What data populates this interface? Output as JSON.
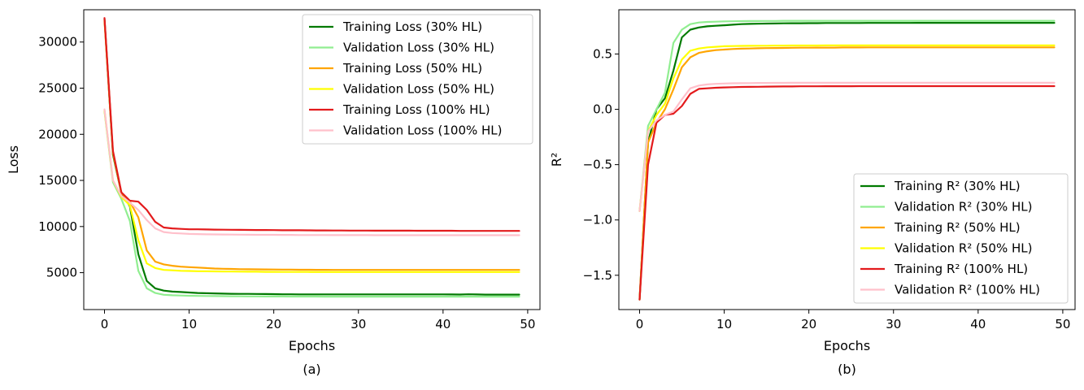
{
  "chart_data": [
    {
      "type": "line",
      "caption": "(a)",
      "xlabel": "Epochs",
      "ylabel": "Loss",
      "xlim": [
        -2.45,
        51.45
      ],
      "ylim": [
        1000,
        33500
      ],
      "xticks": [
        0,
        10,
        20,
        30,
        40,
        50
      ],
      "yticks": [
        5000,
        10000,
        15000,
        20000,
        25000,
        30000
      ],
      "x_tick_labels": [
        "0",
        "10",
        "20",
        "30",
        "40",
        "50"
      ],
      "y_tick_labels": [
        "5000",
        "10000",
        "15000",
        "20000",
        "25000",
        "30000"
      ],
      "grid": false,
      "legend_position": "top-right",
      "x": [
        0,
        1,
        2,
        3,
        4,
        5,
        6,
        7,
        8,
        9,
        10,
        11,
        12,
        13,
        14,
        15,
        16,
        17,
        18,
        19,
        20,
        21,
        22,
        23,
        24,
        25,
        26,
        27,
        28,
        29,
        30,
        31,
        32,
        33,
        34,
        35,
        36,
        37,
        38,
        39,
        40,
        41,
        42,
        43,
        44,
        45,
        46,
        47,
        48,
        49
      ],
      "series": [
        {
          "name": "Training Loss (30% HL)",
          "color": "#007a00",
          "values": [
            32500,
            17800,
            13600,
            12200,
            7000,
            4100,
            3300,
            3050,
            2950,
            2900,
            2850,
            2800,
            2770,
            2750,
            2730,
            2710,
            2700,
            2700,
            2690,
            2680,
            2670,
            2660,
            2660,
            2650,
            2650,
            2650,
            2650,
            2650,
            2650,
            2650,
            2650,
            2650,
            2650,
            2650,
            2650,
            2650,
            2650,
            2650,
            2650,
            2650,
            2650,
            2640,
            2630,
            2660,
            2640,
            2620,
            2620,
            2620,
            2620,
            2620
          ]
        },
        {
          "name": "Validation Loss (30% HL)",
          "color": "#90ee90",
          "values": [
            22500,
            14800,
            13000,
            10600,
            5200,
            3300,
            2800,
            2600,
            2550,
            2520,
            2500,
            2480,
            2470,
            2460,
            2450,
            2440,
            2440,
            2430,
            2430,
            2420,
            2420,
            2420,
            2410,
            2410,
            2410,
            2410,
            2400,
            2400,
            2400,
            2400,
            2400,
            2400,
            2400,
            2400,
            2400,
            2400,
            2400,
            2400,
            2400,
            2400,
            2400,
            2400,
            2400,
            2400,
            2400,
            2400,
            2400,
            2400,
            2400,
            2400
          ]
        },
        {
          "name": "Training Loss (50% HL)",
          "color": "#ffa500",
          "values": [
            32300,
            18000,
            13600,
            12700,
            11000,
            7400,
            6200,
            5900,
            5750,
            5650,
            5600,
            5550,
            5500,
            5450,
            5420,
            5400,
            5380,
            5370,
            5360,
            5350,
            5340,
            5330,
            5330,
            5320,
            5320,
            5310,
            5310,
            5300,
            5300,
            5300,
            5300,
            5300,
            5300,
            5300,
            5300,
            5300,
            5300,
            5300,
            5300,
            5300,
            5300,
            5300,
            5300,
            5300,
            5300,
            5300,
            5300,
            5300,
            5300,
            5300
          ]
        },
        {
          "name": "Validation Loss (50% HL)",
          "color": "#ffff00",
          "values": [
            22600,
            15000,
            13200,
            12300,
            8500,
            6000,
            5500,
            5300,
            5250,
            5200,
            5180,
            5160,
            5150,
            5140,
            5130,
            5120,
            5110,
            5100,
            5100,
            5090,
            5090,
            5080,
            5080,
            5080,
            5080,
            5070,
            5070,
            5070,
            5070,
            5070,
            5070,
            5070,
            5070,
            5070,
            5070,
            5070,
            5070,
            5070,
            5070,
            5070,
            5070,
            5070,
            5070,
            5070,
            5070,
            5070,
            5070,
            5070,
            5070,
            5070
          ]
        },
        {
          "name": "Training Loss (100% HL)",
          "color": "#e31a1c",
          "values": [
            32600,
            18200,
            13700,
            12800,
            12700,
            11800,
            10500,
            9900,
            9800,
            9750,
            9700,
            9700,
            9680,
            9670,
            9660,
            9650,
            9640,
            9630,
            9620,
            9620,
            9610,
            9600,
            9600,
            9600,
            9590,
            9580,
            9580,
            9570,
            9570,
            9560,
            9560,
            9560,
            9550,
            9550,
            9550,
            9550,
            9550,
            9540,
            9540,
            9540,
            9540,
            9540,
            9530,
            9530,
            9530,
            9530,
            9530,
            9530,
            9530,
            9530
          ]
        },
        {
          "name": "Validation Loss (100% HL)",
          "color": "#ffc0cb",
          "values": [
            22700,
            15000,
            13300,
            12600,
            11800,
            10700,
            9800,
            9400,
            9300,
            9250,
            9200,
            9180,
            9160,
            9150,
            9140,
            9130,
            9120,
            9110,
            9100,
            9100,
            9100,
            9090,
            9090,
            9080,
            9080,
            9080,
            9080,
            9070,
            9070,
            9070,
            9070,
            9070,
            9060,
            9060,
            9060,
            9060,
            9060,
            9060,
            9060,
            9060,
            9060,
            9060,
            9060,
            9060,
            9060,
            9060,
            9060,
            9060,
            9060,
            9060
          ]
        }
      ]
    },
    {
      "type": "line",
      "caption": "(b)",
      "xlabel": "Epochs",
      "ylabel": "R²",
      "xlim": [
        -2.45,
        51.45
      ],
      "ylim": [
        -1.81,
        0.9
      ],
      "xticks": [
        0,
        10,
        20,
        30,
        40,
        50
      ],
      "yticks": [
        -1.5,
        -1.0,
        -0.5,
        0.0,
        0.5
      ],
      "x_tick_labels": [
        "0",
        "10",
        "20",
        "30",
        "40",
        "50"
      ],
      "y_tick_labels": [
        "−1.5",
        "−1.0",
        "−0.5",
        "0.0",
        "0.5"
      ],
      "grid": false,
      "legend_position": "bottom-right",
      "x": [
        0,
        1,
        2,
        3,
        4,
        5,
        6,
        7,
        8,
        9,
        10,
        11,
        12,
        13,
        14,
        15,
        16,
        17,
        18,
        19,
        20,
        21,
        22,
        23,
        24,
        25,
        26,
        27,
        28,
        29,
        30,
        31,
        32,
        33,
        34,
        35,
        36,
        37,
        38,
        39,
        40,
        41,
        42,
        43,
        44,
        45,
        46,
        47,
        48,
        49
      ],
      "series": [
        {
          "name": "Training R² (30% HL)",
          "color": "#007a00",
          "values": [
            -1.72,
            -0.3,
            0.0,
            0.1,
            0.35,
            0.65,
            0.72,
            0.74,
            0.75,
            0.755,
            0.76,
            0.765,
            0.77,
            0.772,
            0.774,
            0.775,
            0.776,
            0.777,
            0.778,
            0.778,
            0.779,
            0.779,
            0.78,
            0.78,
            0.78,
            0.78,
            0.78,
            0.781,
            0.781,
            0.781,
            0.781,
            0.781,
            0.781,
            0.782,
            0.782,
            0.782,
            0.782,
            0.782,
            0.782,
            0.782,
            0.782,
            0.782,
            0.782,
            0.782,
            0.782,
            0.782,
            0.782,
            0.782,
            0.782,
            0.782
          ]
        },
        {
          "name": "Validation R² (30% HL)",
          "color": "#90ee90",
          "values": [
            -0.92,
            -0.15,
            0.0,
            0.15,
            0.6,
            0.72,
            0.77,
            0.785,
            0.79,
            0.792,
            0.795,
            0.796,
            0.797,
            0.798,
            0.798,
            0.799,
            0.799,
            0.8,
            0.8,
            0.8,
            0.8,
            0.8,
            0.8,
            0.8,
            0.8,
            0.8,
            0.8,
            0.8,
            0.8,
            0.8,
            0.8,
            0.8,
            0.8,
            0.8,
            0.8,
            0.8,
            0.8,
            0.8,
            0.8,
            0.8,
            0.8,
            0.8,
            0.8,
            0.8,
            0.8,
            0.8,
            0.8,
            0.8,
            0.8,
            0.8
          ]
        },
        {
          "name": "Training R² (50% HL)",
          "color": "#ffa500",
          "values": [
            -1.72,
            -0.3,
            -0.12,
            0.0,
            0.18,
            0.38,
            0.47,
            0.51,
            0.525,
            0.535,
            0.54,
            0.545,
            0.548,
            0.55,
            0.552,
            0.553,
            0.554,
            0.555,
            0.556,
            0.557,
            0.557,
            0.558,
            0.558,
            0.558,
            0.559,
            0.559,
            0.559,
            0.56,
            0.56,
            0.56,
            0.56,
            0.56,
            0.56,
            0.56,
            0.56,
            0.56,
            0.56,
            0.56,
            0.56,
            0.56,
            0.56,
            0.56,
            0.56,
            0.56,
            0.56,
            0.56,
            0.56,
            0.56,
            0.56,
            0.56
          ]
        },
        {
          "name": "Validation R² (50% HL)",
          "color": "#ffff00",
          "values": [
            -0.92,
            -0.2,
            -0.05,
            0.05,
            0.28,
            0.45,
            0.53,
            0.55,
            0.56,
            0.565,
            0.57,
            0.572,
            0.573,
            0.574,
            0.575,
            0.575,
            0.576,
            0.576,
            0.577,
            0.577,
            0.577,
            0.577,
            0.578,
            0.578,
            0.578,
            0.578,
            0.578,
            0.578,
            0.578,
            0.578,
            0.578,
            0.578,
            0.578,
            0.578,
            0.578,
            0.578,
            0.578,
            0.578,
            0.578,
            0.578,
            0.578,
            0.578,
            0.578,
            0.578,
            0.578,
            0.578,
            0.578,
            0.578,
            0.578,
            0.578
          ]
        },
        {
          "name": "Training R² (100% HL)",
          "color": "#e31a1c",
          "values": [
            -1.72,
            -0.5,
            -0.12,
            -0.05,
            -0.04,
            0.03,
            0.14,
            0.185,
            0.19,
            0.195,
            0.198,
            0.2,
            0.202,
            0.203,
            0.204,
            0.205,
            0.206,
            0.207,
            0.207,
            0.208,
            0.208,
            0.208,
            0.209,
            0.209,
            0.209,
            0.209,
            0.21,
            0.21,
            0.21,
            0.21,
            0.21,
            0.21,
            0.21,
            0.21,
            0.21,
            0.21,
            0.21,
            0.21,
            0.21,
            0.21,
            0.21,
            0.21,
            0.21,
            0.21,
            0.21,
            0.21,
            0.21,
            0.21,
            0.21,
            0.21
          ]
        },
        {
          "name": "Validation R² (100% HL)",
          "color": "#ffc0cb",
          "values": [
            -0.92,
            -0.2,
            -0.1,
            -0.05,
            -0.02,
            0.09,
            0.19,
            0.215,
            0.225,
            0.23,
            0.233,
            0.235,
            0.236,
            0.237,
            0.238,
            0.238,
            0.239,
            0.239,
            0.24,
            0.24,
            0.24,
            0.24,
            0.24,
            0.24,
            0.24,
            0.24,
            0.24,
            0.24,
            0.24,
            0.24,
            0.24,
            0.24,
            0.24,
            0.24,
            0.24,
            0.24,
            0.24,
            0.24,
            0.24,
            0.24,
            0.24,
            0.24,
            0.24,
            0.24,
            0.24,
            0.24,
            0.24,
            0.24,
            0.24,
            0.24
          ]
        }
      ]
    }
  ]
}
